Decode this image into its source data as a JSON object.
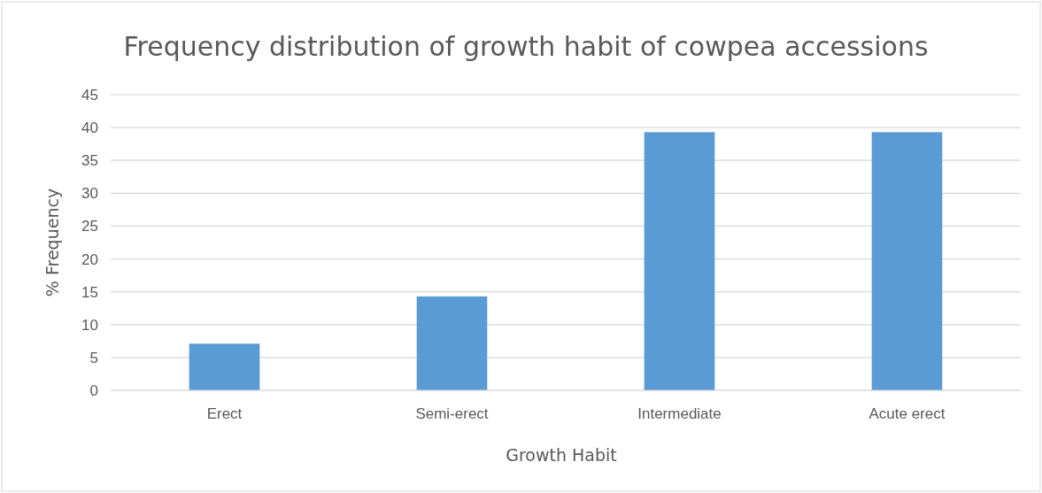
{
  "chart_data": {
    "type": "bar",
    "title": "Frequency distribution of growth habit of cowpea accessions",
    "xlabel": "Growth Habit",
    "ylabel": "% Frequency",
    "categories": [
      "Erect",
      "Semi-erect",
      "Intermediate",
      "Acute erect"
    ],
    "values": [
      7.1,
      14.3,
      39.3,
      39.3
    ],
    "color": "#5b9bd5",
    "ylim": [
      0,
      45
    ],
    "yticks": [
      0,
      5,
      10,
      15,
      20,
      25,
      30,
      35,
      40,
      45
    ],
    "grid": "y"
  }
}
